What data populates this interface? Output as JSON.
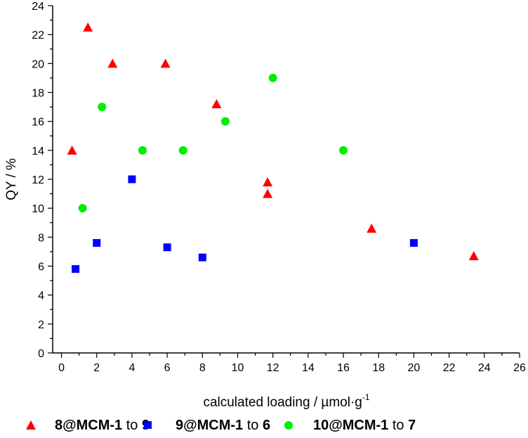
{
  "chart_data": {
    "type": "scatter",
    "xlabel": "calculated loading / µmol·g",
    "xlabel_sup": "-1",
    "ylabel": "QY / %",
    "xlim": [
      -0.5,
      26
    ],
    "ylim": [
      0,
      24
    ],
    "xticks": [
      0,
      2,
      4,
      6,
      8,
      10,
      12,
      14,
      16,
      18,
      20,
      22,
      24,
      26
    ],
    "yticks": [
      0,
      2,
      4,
      6,
      8,
      10,
      12,
      14,
      16,
      18,
      20,
      22,
      24
    ],
    "grid": false,
    "legend_position": "bottom",
    "series": [
      {
        "name": "8@MCM-1 to 9",
        "name_bold1": "8@MCM-1",
        "name_mid": " to ",
        "name_bold2": "9",
        "marker": "triangle",
        "color": "#ff0000",
        "x": [
          0.6,
          1.5,
          2.9,
          5.9,
          8.8,
          11.7,
          11.7,
          17.6,
          23.4
        ],
        "y": [
          14.0,
          22.5,
          20.0,
          20.0,
          17.2,
          11.8,
          11.0,
          8.6,
          6.7
        ]
      },
      {
        "name": "9@MCM-1 to 6",
        "name_bold1": "9@MCM-1",
        "name_mid": " to ",
        "name_bold2": "6",
        "marker": "square",
        "color": "#0000ff",
        "x": [
          0.8,
          2.0,
          4.0,
          6.0,
          8.0,
          20.0
        ],
        "y": [
          5.8,
          7.6,
          12.0,
          7.3,
          6.6,
          7.6
        ]
      },
      {
        "name": "10@MCM-1 to 7",
        "name_bold1": "10@MCM-1",
        "name_mid": " to ",
        "name_bold2": "7",
        "marker": "circle",
        "color": "#00ee00",
        "x": [
          1.2,
          2.3,
          4.6,
          6.9,
          9.3,
          12.0,
          16.0
        ],
        "y": [
          10.0,
          17.0,
          14.0,
          14.0,
          16.0,
          19.0,
          14.0
        ]
      }
    ]
  }
}
